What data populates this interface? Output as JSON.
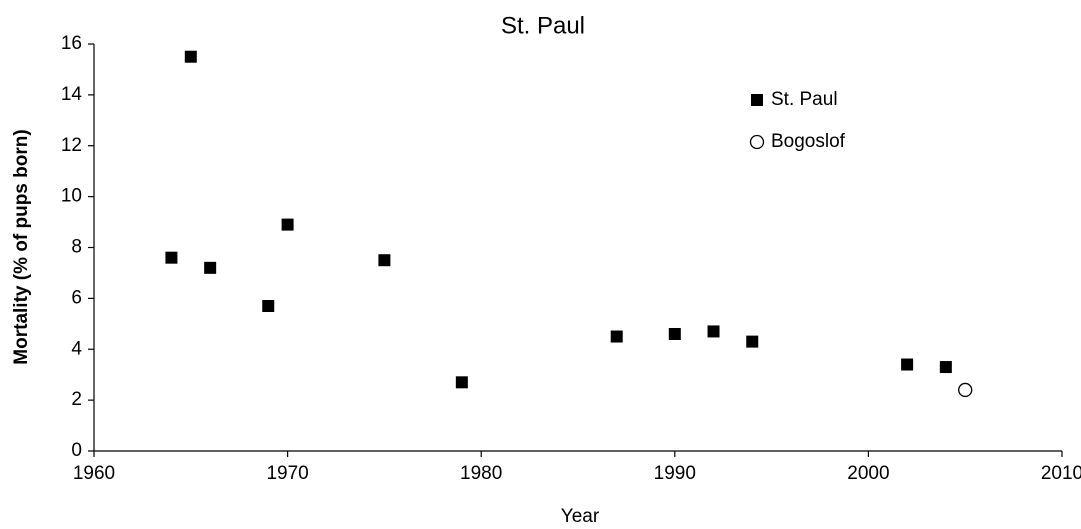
{
  "chart_data": {
    "type": "scatter",
    "title": "St. Paul",
    "xlabel": "Year",
    "ylabel": "Mortality (% of pups born)",
    "xlim": [
      1960,
      2010
    ],
    "xticks": [
      1960,
      1970,
      1980,
      1990,
      2000,
      2010
    ],
    "ylim": [
      0,
      16
    ],
    "yticks": [
      0,
      2,
      4,
      6,
      8,
      10,
      12,
      14,
      16
    ],
    "grid": false,
    "legend": "upper right",
    "series": [
      {
        "name": "St. Paul",
        "color": "#000000",
        "marker": "square",
        "filled": true,
        "x": [
          1964,
          1965,
          1966,
          1969,
          1970,
          1975,
          1979,
          1987,
          1990,
          1992,
          1994,
          2002,
          2004
        ],
        "values": [
          7.6,
          15.5,
          7.2,
          5.7,
          8.9,
          7.5,
          2.7,
          4.5,
          4.6,
          4.7,
          4.3,
          3.4,
          3.3
        ]
      },
      {
        "name": "Bogoslof",
        "color": "#000000",
        "marker": "circle",
        "filled": false,
        "x": [
          2005
        ],
        "values": [
          2.4
        ]
      }
    ]
  }
}
